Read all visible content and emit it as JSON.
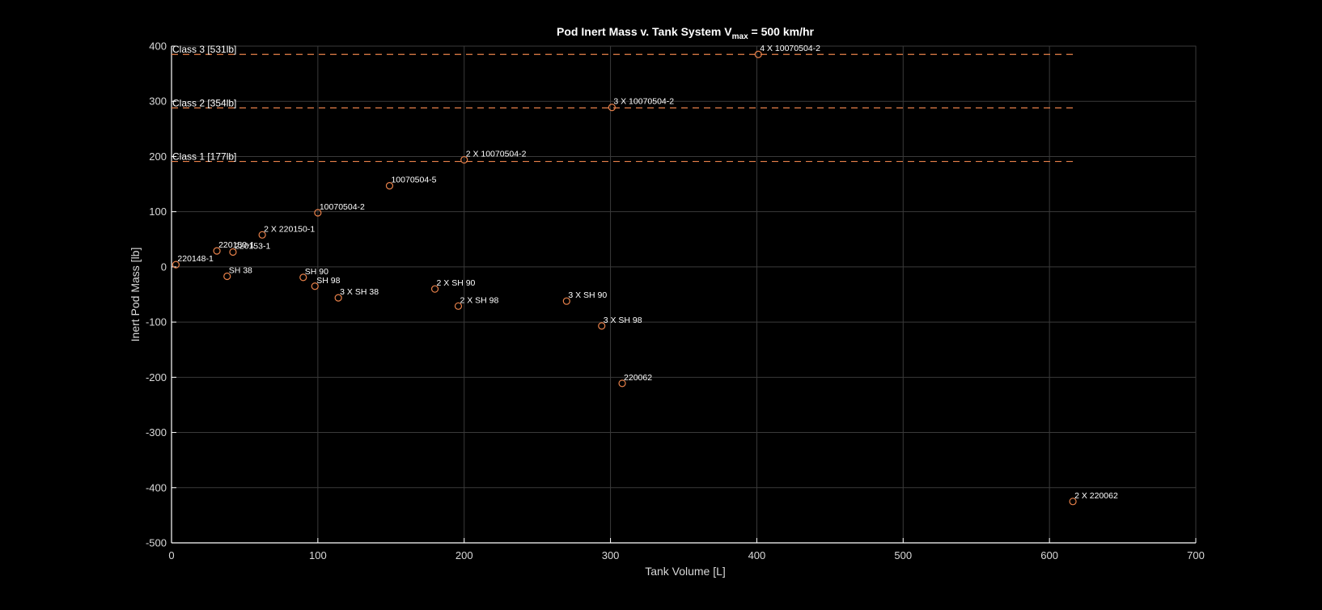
{
  "chart_data": {
    "type": "scatter",
    "title": "Pod Inert Mass v. Tank System V",
    "title_subscript": "max",
    "title_suffix": " = 500 km/hr",
    "xlabel": "Tank Volume [L]",
    "ylabel": "Inert Pod Mass [lb]",
    "xlim": [
      0,
      700
    ],
    "ylim": [
      -500,
      400
    ],
    "xticks": [
      0,
      100,
      200,
      300,
      400,
      500,
      600,
      700
    ],
    "yticks": [
      -500,
      -400,
      -300,
      -200,
      -100,
      0,
      100,
      200,
      300,
      400
    ],
    "grid": true,
    "colors": {
      "marker": "#e8814a",
      "reference": "#e8814a",
      "background": "#000000",
      "axis": "#ffffff"
    },
    "reference_lines": [
      {
        "label": "Class 1 [177lb]",
        "y": 191,
        "x_end": 616
      },
      {
        "label": "Class 2 [354lb]",
        "y": 288,
        "x_end": 616
      },
      {
        "label": "Class 3 [531lb]",
        "y": 385,
        "x_end": 616
      }
    ],
    "points": [
      {
        "label": "220148-1",
        "x": 3,
        "y": 4
      },
      {
        "label": "220150-1",
        "x": 31,
        "y": 29
      },
      {
        "label": "220153-1",
        "x": 42,
        "y": 27
      },
      {
        "label": "2 X 220150-1",
        "x": 62,
        "y": 58
      },
      {
        "label": "SH 38",
        "x": 38,
        "y": -17
      },
      {
        "label": "SH 90",
        "x": 90,
        "y": -19
      },
      {
        "label": "SH 98",
        "x": 98,
        "y": -35
      },
      {
        "label": "10070504-2",
        "x": 100,
        "y": 98
      },
      {
        "label": "3 X SH 38",
        "x": 114,
        "y": -56
      },
      {
        "label": "10070504-5",
        "x": 149,
        "y": 147
      },
      {
        "label": "2 X SH 90",
        "x": 180,
        "y": -40
      },
      {
        "label": "2 X SH 98",
        "x": 196,
        "y": -71
      },
      {
        "label": "2 X 10070504-2",
        "x": 200,
        "y": 194
      },
      {
        "label": "3 X SH 90",
        "x": 270,
        "y": -62
      },
      {
        "label": "3 X SH 98",
        "x": 294,
        "y": -107
      },
      {
        "label": "3 X 10070504-2",
        "x": 301,
        "y": 289
      },
      {
        "label": "220062",
        "x": 308,
        "y": -211
      },
      {
        "label": "4 X 10070504-2",
        "x": 401,
        "y": 385
      },
      {
        "label": "2 X 220062",
        "x": 616,
        "y": -425
      }
    ]
  }
}
